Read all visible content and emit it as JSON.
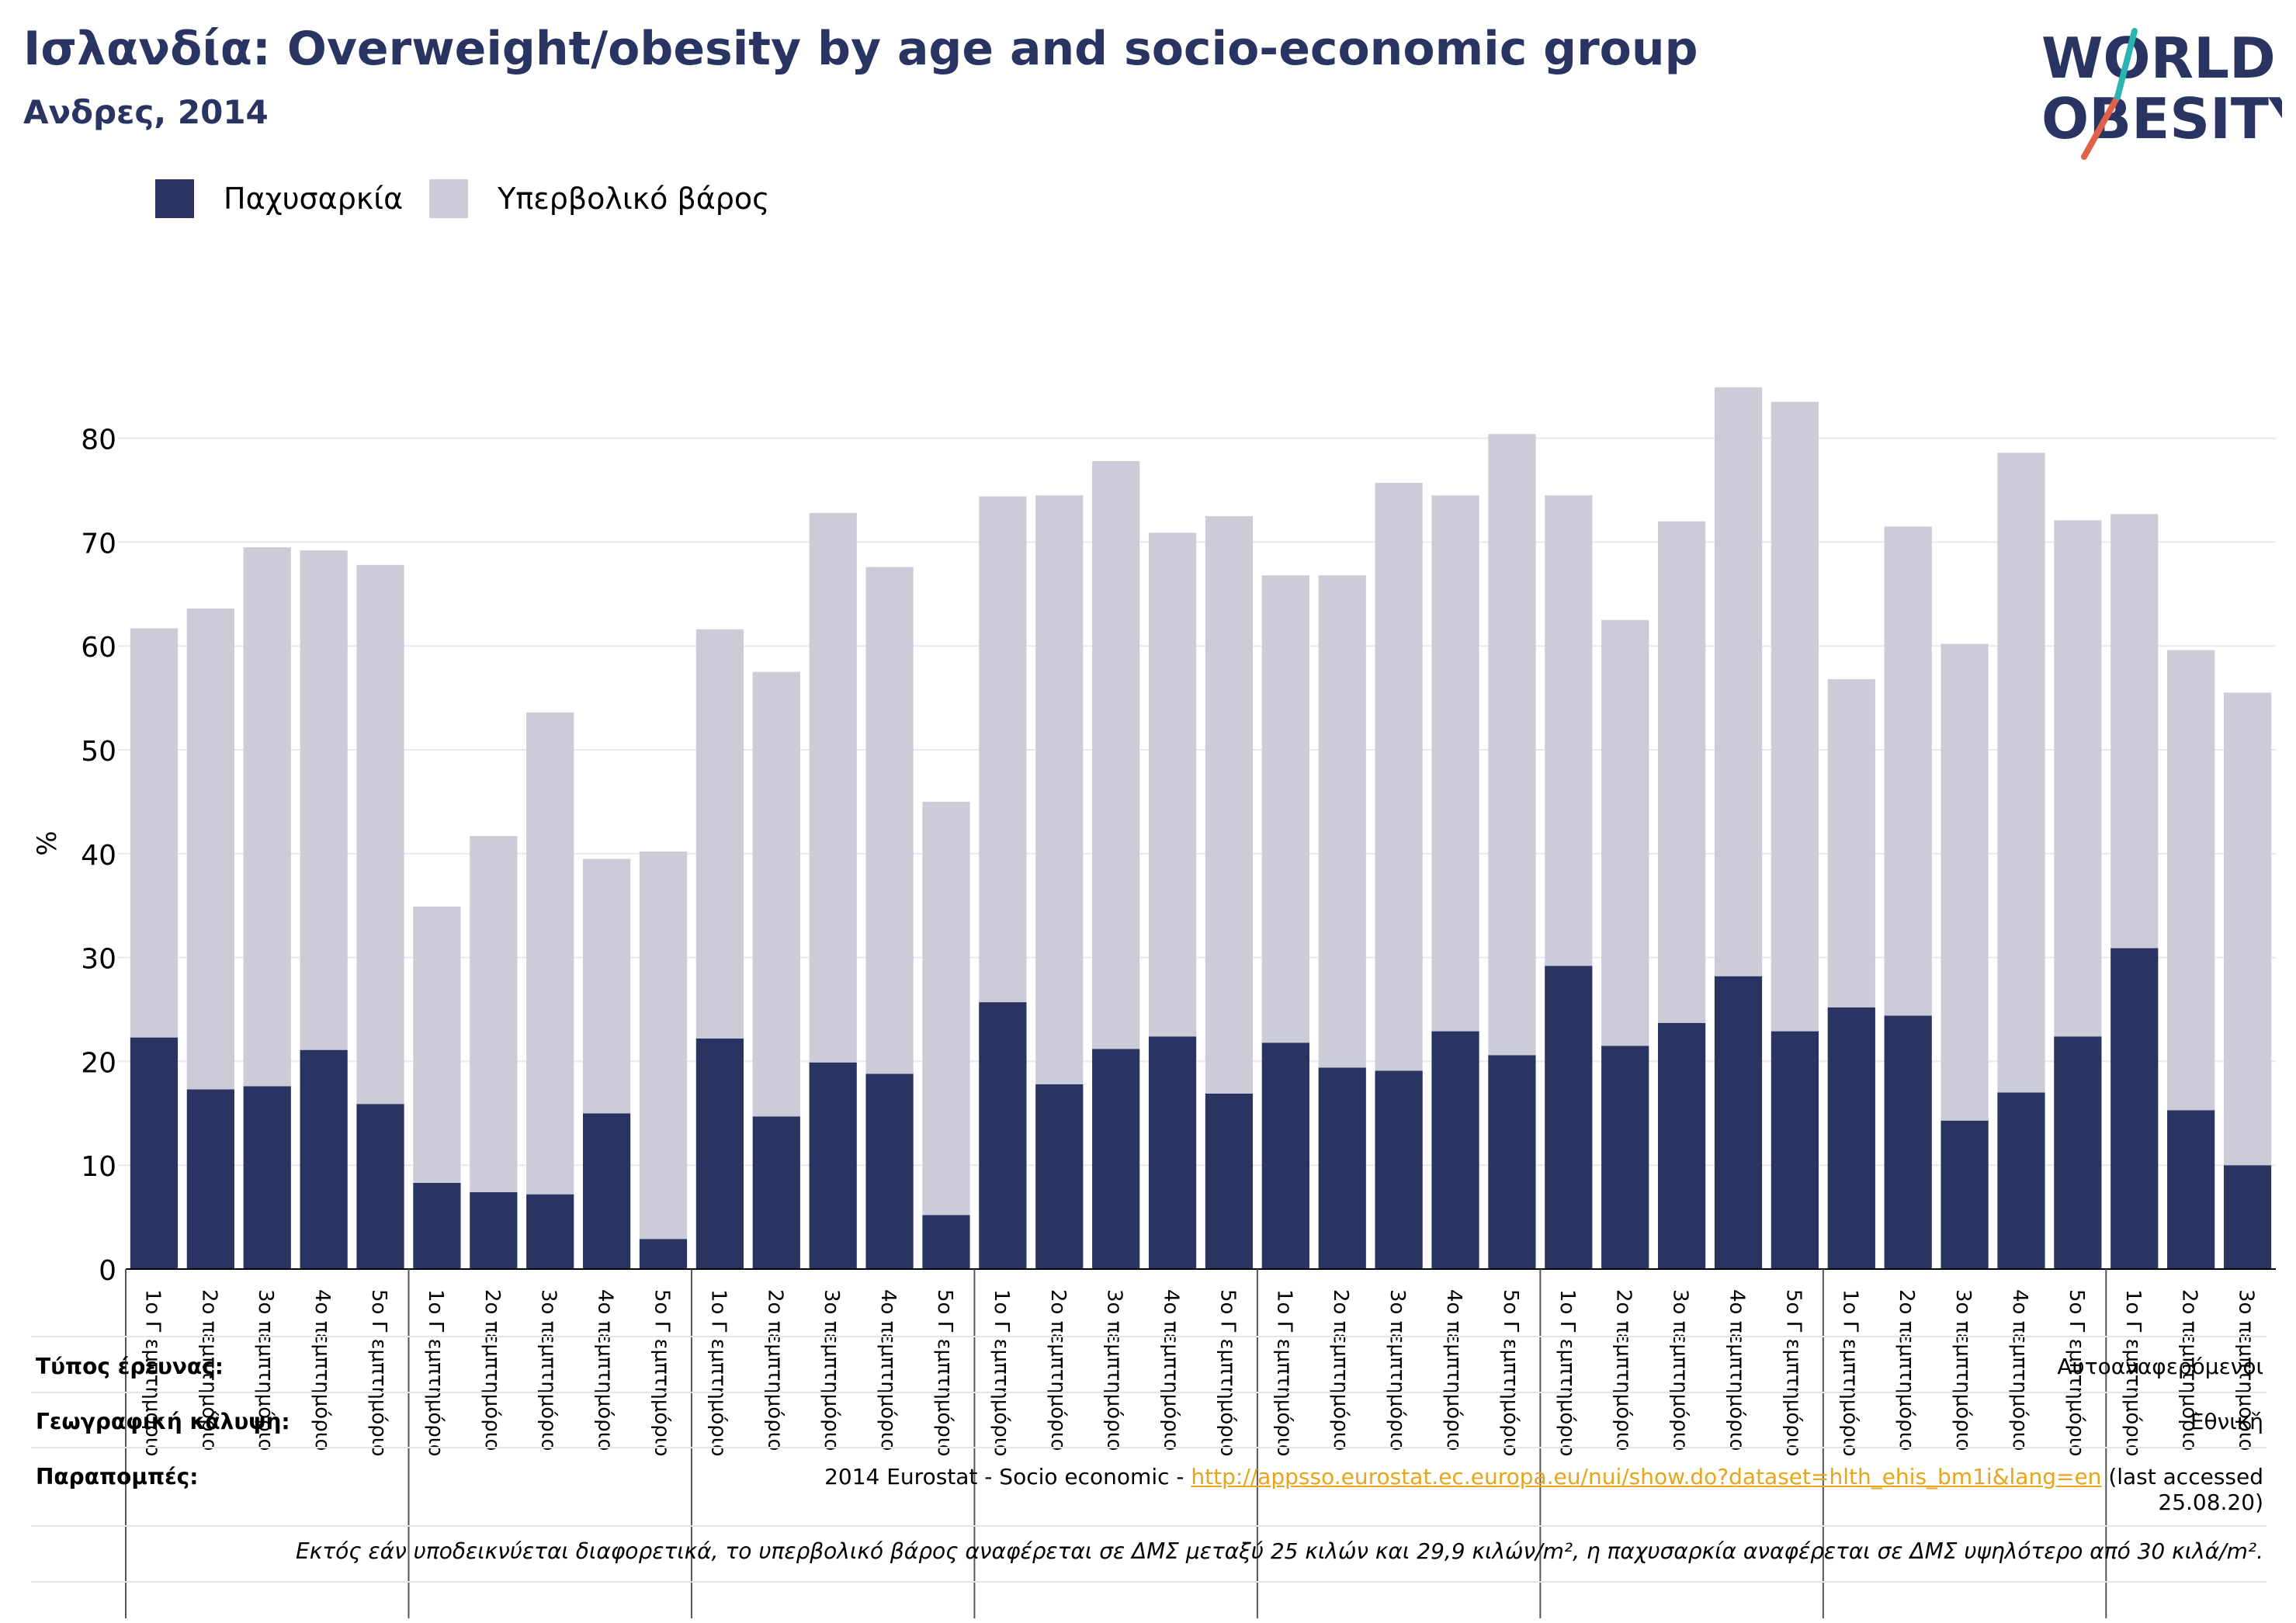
{
  "header": {
    "title": "Ισλανδία: Overweight/obesity by age and socio-economic group",
    "subtitle": "Ανδρες, 2014"
  },
  "logo": {
    "line1": "WORLD",
    "line2": "OBESITY"
  },
  "legend": [
    {
      "label": "Παχυσαρκία",
      "color": "#2a3462"
    },
    {
      "label": "Υπερβολικό βάρος",
      "color": "#cbccd8"
    }
  ],
  "chart_data": {
    "type": "bar",
    "stacked": true,
    "ylabel": "%",
    "ylim": [
      0,
      90
    ],
    "yticks": [
      0,
      10,
      20,
      30,
      40,
      50,
      60,
      70,
      80
    ],
    "grid": true,
    "legend_position": "top-left",
    "categories": [
      "1ο Γ εμπτημόριο",
      "2ο πεμπτημόριο",
      "3ο πεμπτημόριο",
      "4ο πεμπτημόριο",
      "5ο Γ εμπτημόριο",
      "1ο Γ εμπτημόριο",
      "2ο πεμπτημόριο",
      "3ο πεμπτημόριο",
      "4ο πεμπτημόριο",
      "5ο Γ εμπτημόριο",
      "1ο Γ εμπτημόριο",
      "2ο πεμπτημόριο",
      "3ο πεμπτημόριο",
      "4ο πεμπτημόριο",
      "5ο Γ εμπτημόριο",
      "1ο Γ εμπτημόριο",
      "2ο πεμπτημόριο",
      "3ο πεμπτημόριο",
      "4ο πεμπτημόριο",
      "5ο Γ εμπτημόριο",
      "1ο Γ εμπτημόριο",
      "2ο πεμπτημόριο",
      "3ο πεμπτημόριο",
      "4ο πεμπτημόριο",
      "5ο Γ εμπτημόριο",
      "1ο Γ εμπτημόριο",
      "2ο πεμπτημόριο",
      "3ο πεμπτημόριο",
      "4ο πεμπτημόριο",
      "5ο Γ εμπτημόριο",
      "1ο Γ εμπτημόριο",
      "2ο πεμπτημόριο",
      "3ο πεμπτημόριο",
      "4ο πεμπτημόριο",
      "5ο Γ εμπτημόριο",
      "1ο Γ εμπτημόριο",
      "2ο πεμπτημόριο",
      "3ο πεμπτημόριο"
    ],
    "group_sizes": [
      5,
      5,
      5,
      5,
      5,
      5,
      5,
      3
    ],
    "series": [
      {
        "name": "Παχυσαρκία",
        "color": "#2a3462",
        "values": [
          22.3,
          17.3,
          17.6,
          21.1,
          15.9,
          8.3,
          7.4,
          7.2,
          15.0,
          2.9,
          22.2,
          14.7,
          19.9,
          18.8,
          5.2,
          25.7,
          17.8,
          21.2,
          22.4,
          16.9,
          21.8,
          19.4,
          19.1,
          22.9,
          20.6,
          29.2,
          21.5,
          23.7,
          28.2,
          22.9,
          25.2,
          24.4,
          14.3,
          17.0,
          22.4,
          30.9,
          15.3,
          10.0
        ]
      },
      {
        "name": "Υπερβολικό βάρος",
        "color": "#cbccd8",
        "values": [
          39.4,
          46.3,
          51.9,
          48.1,
          51.9,
          26.6,
          34.3,
          46.4,
          24.5,
          37.3,
          39.4,
          42.8,
          52.9,
          48.8,
          39.8,
          48.7,
          56.7,
          56.6,
          48.5,
          55.6,
          45.0,
          47.4,
          56.6,
          51.6,
          59.8,
          45.3,
          41.0,
          48.3,
          56.7,
          60.6,
          31.6,
          47.1,
          45.9,
          61.6,
          49.7,
          41.8,
          44.3,
          45.5
        ]
      }
    ]
  },
  "info": {
    "survey_type_label": "Τύπος έρευνας:",
    "survey_type_value": "Αυτοαναφερόμενοι",
    "coverage_label": "Γεωγραφική κάλυψη:",
    "coverage_value": "Εθνική",
    "references_label": "Παραπομπές:",
    "references_prefix": "2014 Eurostat - Socio economic - ",
    "references_link": "http://appsso.eurostat.ec.europa.eu/nui/show.do?dataset=hlth_ehis_bm1i&lang=en",
    "references_suffix": " (last accessed",
    "references_date": "25.08.20)",
    "note": "Εκτός εάν υποδεικνύεται διαφορετικά, το υπερβολικό βάρος αναφέρεται σε ΔΜΣ μεταξύ 25 κιλών και 29,9 κιλών/m², η παχυσαρκία αναφέρεται σε ΔΜΣ υψηλότερο από 30 κιλά/m²."
  }
}
